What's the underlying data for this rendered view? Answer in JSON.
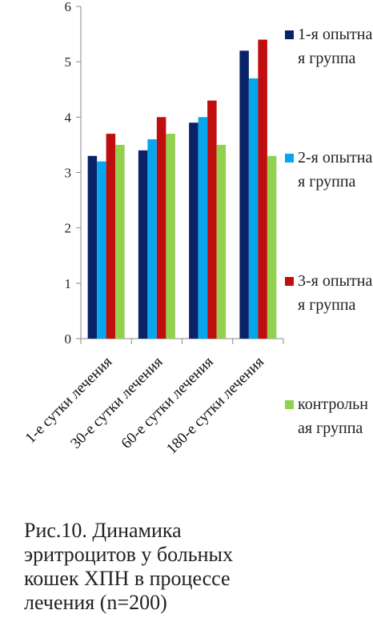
{
  "chart_data": {
    "type": "bar",
    "categories": [
      "1-е сутки лечения",
      "30-е сутки лечения",
      "60-е сутки лечения",
      "180-е сутки лечения"
    ],
    "series": [
      {
        "name": "1-я опытная группа",
        "color": "#0a2268",
        "values": [
          3.3,
          3.4,
          3.9,
          5.2
        ]
      },
      {
        "name": "2-я опытная группа",
        "color": "#05a6ee",
        "values": [
          3.2,
          3.6,
          4.0,
          4.7
        ]
      },
      {
        "name": "3-я опытная группа",
        "color": "#c00d0d",
        "values": [
          3.7,
          4.0,
          4.3,
          5.4
        ]
      },
      {
        "name": "контрольная группа",
        "color": "#92d050",
        "values": [
          3.5,
          3.7,
          3.5,
          3.3
        ]
      }
    ],
    "ylim": [
      0,
      6
    ],
    "yticks": [
      "0",
      "1",
      "2",
      "3",
      "4",
      "5",
      "6"
    ],
    "title": "",
    "xlabel": "",
    "ylabel": "",
    "grid": false,
    "legend_position": "right"
  },
  "caption": "Рис.10. Динамика эритроцитов у больных кошек ХПН в процессе лечения (n=200)"
}
